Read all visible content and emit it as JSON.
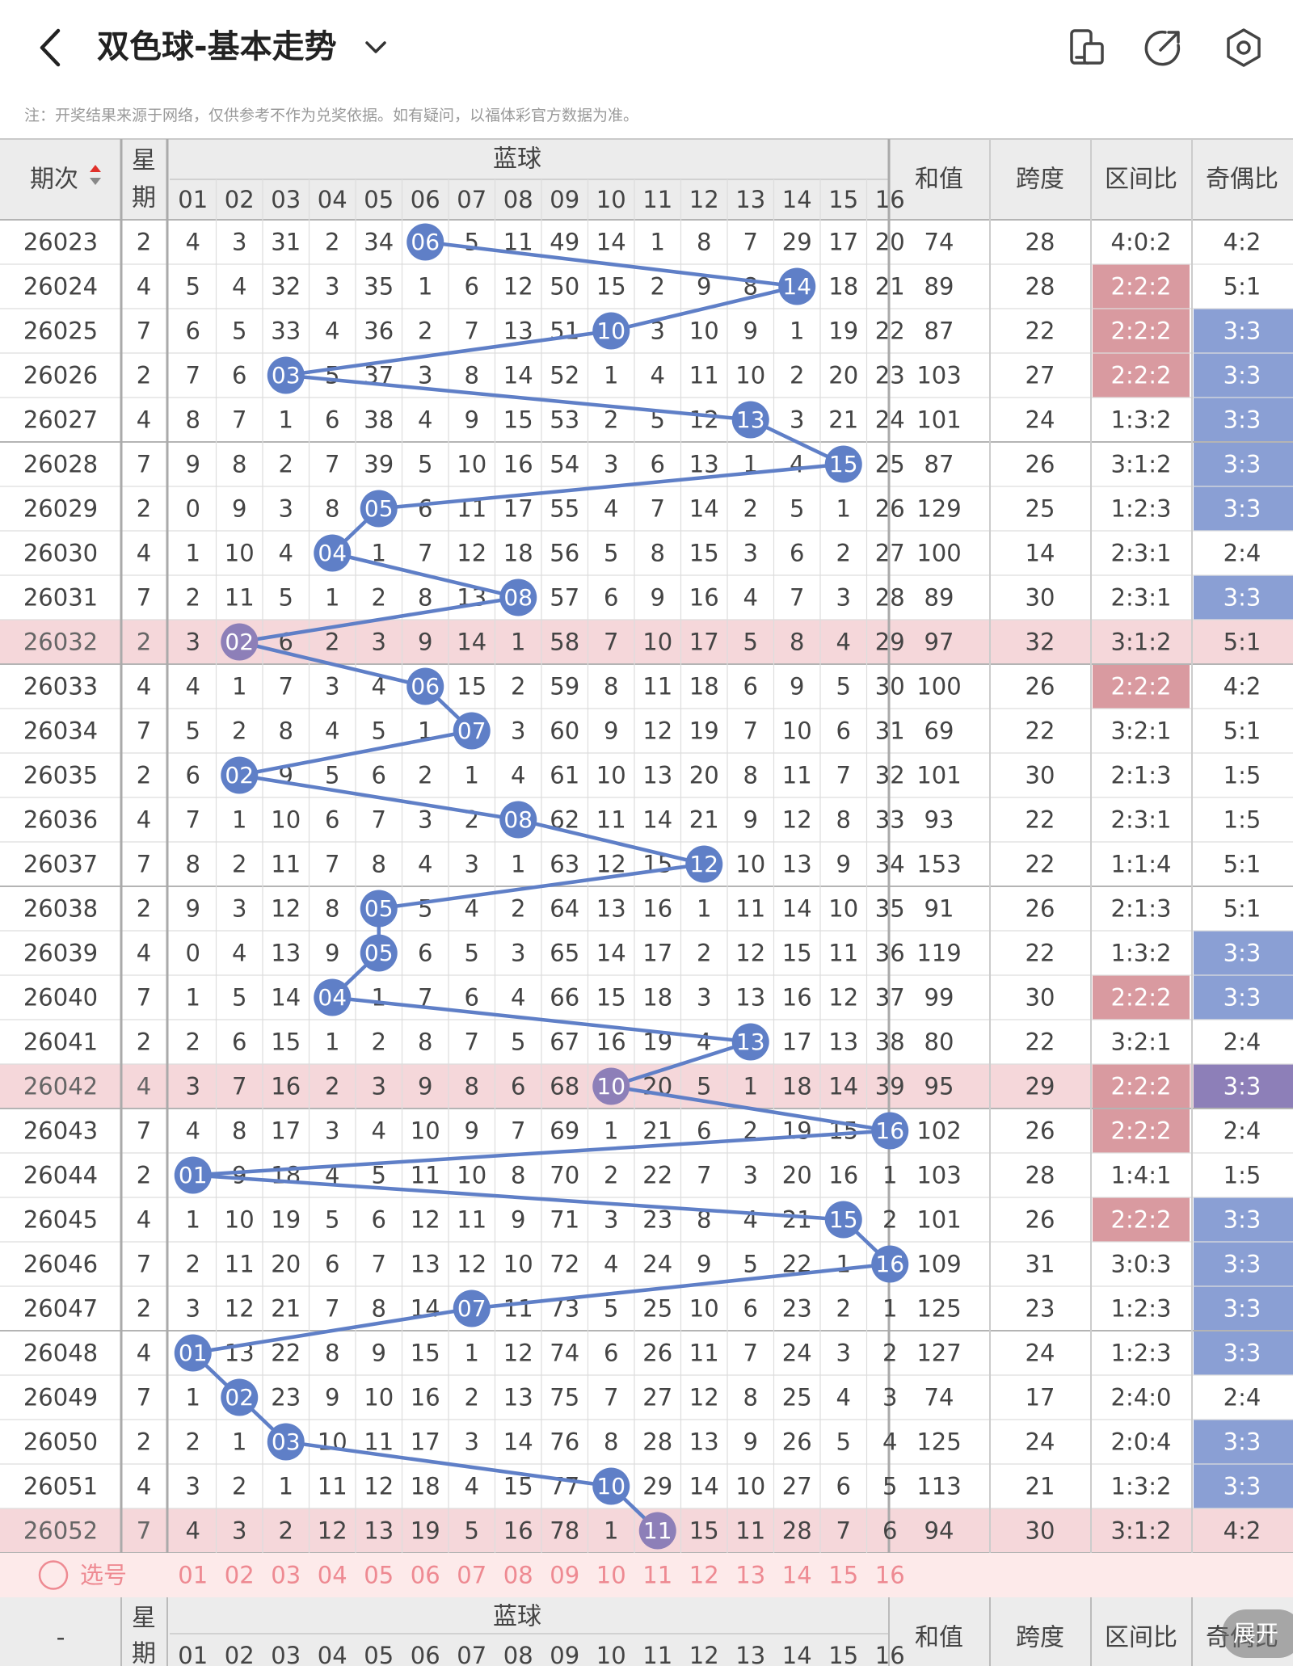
{
  "header": {
    "title": "双色球-基本走势",
    "back_icon": "chevron-left-icon",
    "dropdown_icon": "chevron-down-icon",
    "buttons": [
      "device-switch-icon",
      "share-icon",
      "settings-icon"
    ]
  },
  "note": "注：开奖结果来源于网络，仅供参考不作为兑奖依据。如有疑问，以福体彩官方数据为准。",
  "table": {
    "col_period": "期次",
    "col_week": "星期",
    "blue_group": "蓝球",
    "col_sum": "和值",
    "col_span": "跨度",
    "col_zone": "区间比",
    "col_oddeven": "奇偶比",
    "blue_numbers": [
      "01",
      "02",
      "03",
      "04",
      "05",
      "06",
      "07",
      "08",
      "09",
      "10",
      "11",
      "12",
      "13",
      "14",
      "15",
      "16"
    ],
    "footer_period": "-",
    "select_label": "选号"
  },
  "expand_label": "展开",
  "colors": {
    "accent_blue": "#5f7fc7",
    "hit_purple": "#8d7fb8",
    "zone_red": "#d99aa0",
    "oddeven_blue": "#8a9fd4",
    "highlight_row": "#f5d7da",
    "select_pink": "#ee8a92"
  },
  "rows": [
    {
      "period": "26023",
      "week": "2",
      "blue": 6,
      "miss": [
        4,
        3,
        31,
        2,
        34,
        0,
        5,
        11,
        49,
        14,
        1,
        8,
        7,
        29,
        17,
        20
      ],
      "sum": "74",
      "span": "28",
      "zone": "4:0:2",
      "oe": "4:2"
    },
    {
      "period": "26024",
      "week": "4",
      "blue": 14,
      "miss": [
        5,
        4,
        32,
        3,
        35,
        1,
        6,
        12,
        50,
        15,
        2,
        9,
        8,
        0,
        18,
        21
      ],
      "sum": "89",
      "span": "28",
      "zone": "2:2:2",
      "oe": "5:1"
    },
    {
      "period": "26025",
      "week": "7",
      "blue": 10,
      "miss": [
        6,
        5,
        33,
        4,
        36,
        2,
        7,
        13,
        51,
        0,
        3,
        10,
        9,
        1,
        19,
        22
      ],
      "sum": "87",
      "span": "22",
      "zone": "2:2:2",
      "oe": "3:3"
    },
    {
      "period": "26026",
      "week": "2",
      "blue": 3,
      "miss": [
        7,
        6,
        0,
        5,
        37,
        3,
        8,
        14,
        52,
        1,
        4,
        11,
        10,
        2,
        20,
        23
      ],
      "sum": "103",
      "span": "27",
      "zone": "2:2:2",
      "oe": "3:3"
    },
    {
      "period": "26027",
      "week": "4",
      "blue": 13,
      "miss": [
        8,
        7,
        1,
        6,
        38,
        4,
        9,
        15,
        53,
        2,
        5,
        12,
        0,
        3,
        21,
        24
      ],
      "sum": "101",
      "span": "24",
      "zone": "1:3:2",
      "oe": "3:3"
    },
    {
      "period": "26028",
      "week": "7",
      "blue": 15,
      "miss": [
        9,
        8,
        2,
        7,
        39,
        5,
        10,
        16,
        54,
        3,
        6,
        13,
        1,
        4,
        0,
        25
      ],
      "sum": "87",
      "span": "26",
      "zone": "3:1:2",
      "oe": "3:3"
    },
    {
      "period": "26029",
      "week": "2",
      "blue": 5,
      "miss": [
        10,
        9,
        3,
        8,
        0,
        6,
        11,
        17,
        55,
        4,
        7,
        14,
        2,
        5,
        1,
        26
      ],
      "sum": "129",
      "span": "25",
      "zone": "1:2:3",
      "oe": "3:3"
    },
    {
      "period": "26030",
      "week": "4",
      "blue": 4,
      "miss": [
        11,
        10,
        4,
        0,
        1,
        7,
        12,
        18,
        56,
        5,
        8,
        15,
        3,
        6,
        2,
        27
      ],
      "sum": "100",
      "span": "14",
      "zone": "2:3:1",
      "oe": "2:4"
    },
    {
      "period": "26031",
      "week": "7",
      "blue": 8,
      "miss": [
        12,
        11,
        5,
        1,
        2,
        8,
        13,
        0,
        57,
        6,
        9,
        16,
        4,
        7,
        3,
        28
      ],
      "sum": "89",
      "span": "30",
      "zone": "2:3:1",
      "oe": "3:3"
    },
    {
      "period": "26032",
      "week": "2",
      "blue": 2,
      "miss": [
        13,
        0,
        6,
        2,
        3,
        9,
        14,
        1,
        58,
        7,
        10,
        17,
        5,
        8,
        4,
        29
      ],
      "sum": "97",
      "span": "32",
      "zone": "3:1:2",
      "oe": "5:1"
    },
    {
      "period": "26033",
      "week": "4",
      "blue": 6,
      "miss": [
        14,
        1,
        7,
        3,
        4,
        0,
        15,
        2,
        59,
        8,
        11,
        18,
        6,
        9,
        5,
        30
      ],
      "sum": "100",
      "span": "26",
      "zone": "2:2:2",
      "oe": "4:2"
    },
    {
      "period": "26034",
      "week": "7",
      "blue": 7,
      "miss": [
        15,
        2,
        8,
        4,
        5,
        1,
        0,
        3,
        60,
        9,
        12,
        19,
        7,
        10,
        6,
        31
      ],
      "sum": "69",
      "span": "22",
      "zone": "3:2:1",
      "oe": "5:1"
    },
    {
      "period": "26035",
      "week": "2",
      "blue": 2,
      "miss": [
        16,
        0,
        9,
        5,
        6,
        2,
        1,
        4,
        61,
        10,
        13,
        20,
        8,
        11,
        7,
        32
      ],
      "sum": "101",
      "span": "30",
      "zone": "2:1:3",
      "oe": "1:5"
    },
    {
      "period": "26036",
      "week": "4",
      "blue": 8,
      "miss": [
        17,
        1,
        10,
        6,
        7,
        3,
        2,
        0,
        62,
        11,
        14,
        21,
        9,
        12,
        8,
        33
      ],
      "sum": "93",
      "span": "22",
      "zone": "2:3:1",
      "oe": "1:5"
    },
    {
      "period": "26037",
      "week": "7",
      "blue": 12,
      "miss": [
        18,
        2,
        11,
        7,
        8,
        4,
        3,
        1,
        63,
        12,
        15,
        0,
        10,
        13,
        9,
        34
      ],
      "sum": "153",
      "span": "22",
      "zone": "1:1:4",
      "oe": "5:1"
    },
    {
      "period": "26038",
      "week": "2",
      "blue": 5,
      "miss": [
        19,
        3,
        12,
        8,
        0,
        5,
        4,
        2,
        64,
        13,
        16,
        1,
        11,
        14,
        10,
        35
      ],
      "sum": "91",
      "span": "26",
      "zone": "2:1:3",
      "oe": "5:1"
    },
    {
      "period": "26039",
      "week": "4",
      "blue": 5,
      "miss": [
        20,
        4,
        13,
        9,
        0,
        6,
        5,
        3,
        65,
        14,
        17,
        2,
        12,
        15,
        11,
        36
      ],
      "sum": "119",
      "span": "22",
      "zone": "1:3:2",
      "oe": "3:3"
    },
    {
      "period": "26040",
      "week": "7",
      "blue": 4,
      "miss": [
        21,
        5,
        14,
        0,
        1,
        7,
        6,
        4,
        66,
        15,
        18,
        3,
        13,
        16,
        12,
        37
      ],
      "sum": "99",
      "span": "30",
      "zone": "2:2:2",
      "oe": "3:3"
    },
    {
      "period": "26041",
      "week": "2",
      "blue": 13,
      "miss": [
        22,
        6,
        15,
        1,
        2,
        8,
        7,
        5,
        67,
        16,
        19,
        4,
        0,
        17,
        13,
        38
      ],
      "sum": "80",
      "span": "22",
      "zone": "3:2:1",
      "oe": "2:4"
    },
    {
      "period": "26042",
      "week": "4",
      "blue": 10,
      "miss": [
        23,
        7,
        16,
        2,
        3,
        9,
        8,
        6,
        68,
        0,
        20,
        5,
        1,
        18,
        14,
        39
      ],
      "sum": "95",
      "span": "29",
      "zone": "2:2:2",
      "oe": "3:3"
    },
    {
      "period": "26043",
      "week": "7",
      "blue": 16,
      "miss": [
        24,
        8,
        17,
        3,
        4,
        10,
        9,
        7,
        69,
        1,
        21,
        6,
        2,
        19,
        15,
        0
      ],
      "sum": "102",
      "span": "26",
      "zone": "2:2:2",
      "oe": "2:4"
    },
    {
      "period": "26044",
      "week": "2",
      "blue": 1,
      "miss": [
        0,
        9,
        18,
        4,
        5,
        11,
        10,
        8,
        70,
        2,
        22,
        7,
        3,
        20,
        16,
        1
      ],
      "sum": "103",
      "span": "28",
      "zone": "1:4:1",
      "oe": "1:5"
    },
    {
      "period": "26045",
      "week": "4",
      "blue": 15,
      "miss": [
        1,
        10,
        19,
        5,
        6,
        12,
        11,
        9,
        71,
        3,
        23,
        8,
        4,
        21,
        0,
        2
      ],
      "sum": "101",
      "span": "26",
      "zone": "2:2:2",
      "oe": "3:3"
    },
    {
      "period": "26046",
      "week": "7",
      "blue": 16,
      "miss": [
        2,
        11,
        20,
        6,
        7,
        13,
        12,
        10,
        72,
        4,
        24,
        9,
        5,
        22,
        1,
        0
      ],
      "sum": "109",
      "span": "31",
      "zone": "3:0:3",
      "oe": "3:3"
    },
    {
      "period": "26047",
      "week": "2",
      "blue": 7,
      "miss": [
        3,
        12,
        21,
        7,
        8,
        14,
        0,
        11,
        73,
        5,
        25,
        10,
        6,
        23,
        2,
        1
      ],
      "sum": "125",
      "span": "23",
      "zone": "1:2:3",
      "oe": "3:3"
    },
    {
      "period": "26048",
      "week": "4",
      "blue": 1,
      "miss": [
        0,
        13,
        22,
        8,
        9,
        15,
        1,
        12,
        74,
        6,
        26,
        11,
        7,
        24,
        3,
        2
      ],
      "sum": "127",
      "span": "24",
      "zone": "1:2:3",
      "oe": "3:3"
    },
    {
      "period": "26049",
      "week": "7",
      "blue": 2,
      "miss": [
        1,
        0,
        23,
        9,
        10,
        16,
        2,
        13,
        75,
        7,
        27,
        12,
        8,
        25,
        4,
        3
      ],
      "sum": "74",
      "span": "17",
      "zone": "2:4:0",
      "oe": "2:4"
    },
    {
      "period": "26050",
      "week": "2",
      "blue": 3,
      "miss": [
        2,
        1,
        0,
        10,
        11,
        17,
        3,
        14,
        76,
        8,
        28,
        13,
        9,
        26,
        5,
        4
      ],
      "sum": "125",
      "span": "24",
      "zone": "2:0:4",
      "oe": "3:3"
    },
    {
      "period": "26051",
      "week": "4",
      "blue": 10,
      "miss": [
        3,
        2,
        1,
        11,
        12,
        18,
        4,
        15,
        77,
        0,
        29,
        14,
        10,
        27,
        6,
        5
      ],
      "sum": "113",
      "span": "21",
      "zone": "1:3:2",
      "oe": "3:3"
    },
    {
      "period": "26052",
      "week": "7",
      "blue": 11,
      "miss": [
        4,
        3,
        2,
        12,
        13,
        19,
        5,
        16,
        78,
        1,
        0,
        15,
        11,
        28,
        7,
        6
      ],
      "sum": "94",
      "span": "30",
      "zone": "3:1:2",
      "oe": "4:2"
    }
  ]
}
